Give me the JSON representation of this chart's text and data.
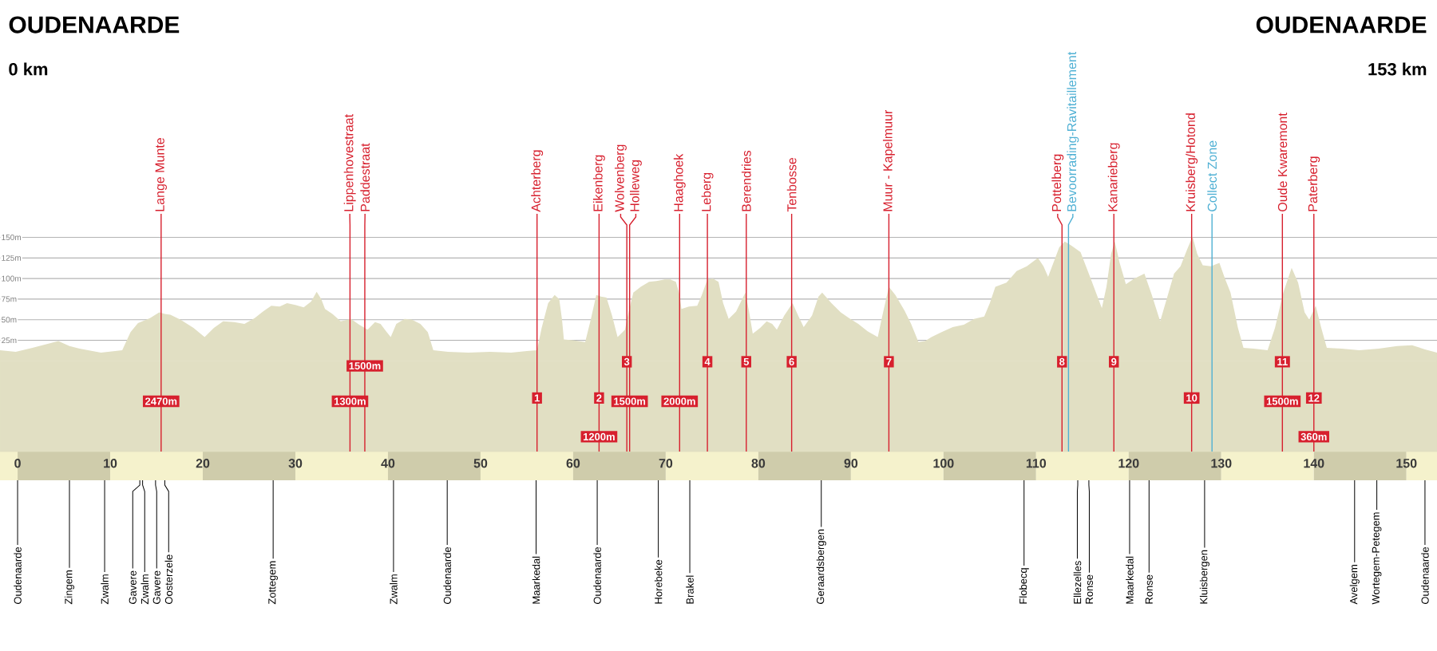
{
  "chart_data": {
    "type": "area",
    "color": "#e1dfc3",
    "x": [
      -1.9,
      -0.2,
      1.6,
      4.4,
      5.6,
      6.7,
      9.0,
      11.3,
      12.2,
      13.0,
      14.3,
      15.3,
      15.9,
      16.5,
      17.6,
      19.0,
      20.2,
      21.2,
      22.2,
      23.4,
      24.5,
      25.6,
      26.5,
      27.4,
      28.3,
      29.1,
      30.0,
      30.9,
      31.7,
      32.3,
      32.8,
      33.2,
      34.0,
      34.9,
      36.0,
      36.9,
      37.8,
      38.6,
      39.2,
      39.8,
      40.3,
      40.9,
      41.8,
      42.6,
      43.5,
      44.3,
      44.9,
      46.5,
      48.7,
      51.0,
      53.3,
      55.0,
      56.1,
      56.6,
      57.3,
      58.0,
      58.5,
      58.8,
      59.0,
      60.0,
      61.3,
      61.9,
      62.5,
      63.0,
      63.6,
      64.2,
      64.8,
      65.6,
      66.0,
      66.5,
      67.3,
      68.2,
      69.0,
      69.9,
      70.5,
      71.1,
      71.5,
      71.7,
      72.5,
      73.4,
      73.9,
      74.5,
      75.1,
      75.7,
      76.2,
      76.8,
      77.6,
      78.6,
      79.0,
      79.4,
      80.2,
      80.9,
      81.5,
      82.0,
      82.8,
      83.7,
      84.3,
      84.9,
      85.8,
      86.5,
      86.9,
      87.9,
      88.9,
      89.8,
      90.8,
      91.8,
      92.9,
      93.4,
      94.1,
      94.8,
      95.8,
      96.5,
      97.3,
      98.0,
      98.7,
      99.8,
      101.0,
      102.2,
      103.3,
      104.4,
      105.0,
      105.6,
      106.8,
      107.9,
      109.0,
      110.2,
      110.8,
      111.3,
      111.9,
      112.5,
      113.1,
      113.8,
      114.8,
      115.9,
      117.1,
      117.6,
      118.1,
      118.5,
      119.0,
      119.7,
      120.6,
      121.7,
      122.5,
      123.4,
      124.1,
      124.9,
      125.6,
      126.3,
      126.9,
      127.4,
      128.0,
      128.9,
      129.8,
      130.4,
      131.0,
      131.8,
      132.4,
      133.5,
      135.0,
      135.8,
      136.7,
      137.6,
      138.3,
      139.0,
      139.5,
      140.2,
      140.8,
      141.4,
      143.0,
      144.9,
      147.0,
      149.0,
      150.6,
      152.0,
      153.3
    ],
    "values": [
      13,
      11,
      16,
      24,
      18,
      15,
      10,
      13,
      35,
      46,
      52,
      59,
      57,
      56,
      50,
      40,
      29,
      40,
      48,
      47,
      45,
      52,
      60,
      67,
      66,
      70,
      68,
      65,
      72,
      84,
      75,
      63,
      57,
      48,
      51,
      44,
      38,
      47,
      45,
      36,
      29,
      45,
      51,
      50,
      45,
      35,
      13,
      11,
      10,
      11,
      10,
      12,
      13,
      40,
      70,
      80,
      75,
      50,
      26,
      25,
      23,
      50,
      80,
      78,
      77,
      55,
      29,
      38,
      60,
      83,
      90,
      96,
      97,
      99,
      99,
      96,
      80,
      63,
      66,
      67,
      80,
      99,
      100,
      96,
      70,
      51,
      60,
      83,
      60,
      33,
      40,
      48,
      45,
      38,
      55,
      70,
      55,
      41,
      55,
      78,
      83,
      70,
      59,
      52,
      45,
      36,
      29,
      55,
      90,
      80,
      61,
      45,
      23,
      24,
      29,
      35,
      41,
      44,
      51,
      54,
      70,
      90,
      95,
      109,
      115,
      125,
      115,
      102,
      120,
      138,
      145,
      140,
      132,
      100,
      64,
      90,
      130,
      145,
      120,
      93,
      100,
      106,
      80,
      48,
      75,
      106,
      115,
      135,
      151,
      130,
      116,
      115,
      119,
      100,
      83,
      40,
      16,
      15,
      13,
      40,
      83,
      113,
      95,
      59,
      50,
      67,
      40,
      16,
      15,
      13,
      15,
      18,
      19,
      14,
      10
    ],
    "xlim": [
      -1.9,
      153.3
    ],
    "xticks": [
      0,
      10,
      20,
      30,
      40,
      50,
      60,
      70,
      80,
      90,
      100,
      110,
      120,
      130,
      140,
      150
    ],
    "ylim": [
      -110,
      165
    ],
    "yticks": [
      {
        "value": 25,
        "label": "25m"
      },
      {
        "value": 50,
        "label": "50m"
      },
      {
        "value": 75,
        "label": "75m"
      },
      {
        "value": 100,
        "label": "100m"
      },
      {
        "value": 125,
        "label": "125m"
      },
      {
        "value": 150,
        "label": "150m"
      }
    ],
    "grid": "y",
    "bands": [
      {
        "axis": "y",
        "from": -110,
        "to": 0,
        "color": "#e1dfc3"
      }
    ],
    "ref_lines": [
      {
        "axis": "x",
        "value": 15.5,
        "label": "Lange Munte",
        "color": "#d7202e"
      },
      {
        "axis": "x",
        "value": 35.9,
        "label": "Lippenhovestraat",
        "color": "#d7202e"
      },
      {
        "axis": "x",
        "value": 37.5,
        "label": "Paddestraat",
        "color": "#d7202e"
      },
      {
        "axis": "x",
        "value": 56.1,
        "label": "Achterberg",
        "color": "#d7202e"
      },
      {
        "axis": "x",
        "value": 62.8,
        "label": "Eikenberg",
        "color": "#d7202e"
      },
      {
        "axis": "x",
        "value": 65.8,
        "label": "Wolvenberg",
        "color": "#d7202e"
      },
      {
        "axis": "x",
        "value": 66.1,
        "label": "Holleweg",
        "color": "#d7202e"
      },
      {
        "axis": "x",
        "value": 71.5,
        "label": "Haaghoek",
        "color": "#d7202e"
      },
      {
        "axis": "x",
        "value": 74.5,
        "label": "Leberg",
        "color": "#d7202e"
      },
      {
        "axis": "x",
        "value": 78.7,
        "label": "Berendries",
        "color": "#d7202e"
      },
      {
        "axis": "x",
        "value": 83.6,
        "label": "Tenbosse",
        "color": "#d7202e"
      },
      {
        "axis": "x",
        "value": 94.1,
        "label": "Muur - Kapelmuur",
        "color": "#d7202e"
      },
      {
        "axis": "x",
        "value": 112.8,
        "label": "Pottelberg",
        "color": "#d7202e"
      },
      {
        "axis": "x",
        "value": 113.5,
        "label": "Bevoorrading-Ravitaillement",
        "color": "#4fb0d4"
      },
      {
        "axis": "x",
        "value": 118.4,
        "label": "Kanarieberg",
        "color": "#d7202e"
      },
      {
        "axis": "x",
        "value": 126.8,
        "label": "Kruisberg/Hotond",
        "color": "#d7202e"
      },
      {
        "axis": "x",
        "value": 129.0,
        "label": "Collect Zone",
        "color": "#4fb0d4"
      },
      {
        "axis": "x",
        "value": 136.6,
        "label": "Oude Kwaremont",
        "color": "#d7202e"
      },
      {
        "axis": "x",
        "value": 140.0,
        "label": "Paterberg",
        "color": "#d7202e"
      }
    ],
    "annotations": [
      "OUDENAARDE",
      "0 km",
      "OUDENAARDE",
      "153 km",
      {
        "text": "1",
        "x": 56.1,
        "y": -45
      },
      {
        "text": "2",
        "x": 62.8,
        "y": -45
      },
      {
        "text": "3",
        "x": 65.8,
        "y": -1
      },
      {
        "text": "4",
        "x": 74.5,
        "y": -1
      },
      {
        "text": "5",
        "x": 78.7,
        "y": -1
      },
      {
        "text": "6",
        "x": 83.6,
        "y": -1
      },
      {
        "text": "7",
        "x": 94.1,
        "y": -1
      },
      {
        "text": "8",
        "x": 112.8,
        "y": -1
      },
      {
        "text": "9",
        "x": 118.4,
        "y": -1
      },
      {
        "text": "10",
        "x": 126.8,
        "y": -45
      },
      {
        "text": "11",
        "x": 136.6,
        "y": -1
      },
      {
        "text": "12",
        "x": 140.0,
        "y": -45
      },
      {
        "text": "2470m",
        "x": 15.5,
        "y": -49
      },
      {
        "text": "1300m",
        "x": 35.9,
        "y": -49
      },
      {
        "text": "1500m",
        "x": 37.5,
        "y": -6
      },
      {
        "text": "1200m",
        "x": 62.8,
        "y": -92
      },
      {
        "text": "1500m",
        "x": 66.1,
        "y": -49
      },
      {
        "text": "2000m",
        "x": 71.5,
        "y": -49
      },
      {
        "text": "1500m",
        "x": 136.6,
        "y": -49
      },
      {
        "text": "360m",
        "x": 140.0,
        "y": -92
      },
      {
        "text": "Oudenaarde",
        "x": 0
      },
      {
        "text": "Zingem",
        "x": 5.6
      },
      {
        "text": "Zwalm",
        "x": 9.4
      },
      {
        "text": "Gavere",
        "x": 13.2
      },
      {
        "text": "Zwalm",
        "x": 13.5
      },
      {
        "text": "Gavere",
        "x": 14.9
      },
      {
        "text": "Oosterzele",
        "x": 15.9
      },
      {
        "text": "Zottegem",
        "x": 27.6
      },
      {
        "text": "Zwalm",
        "x": 40.6
      },
      {
        "text": "Oudenaarde",
        "x": 46.4
      },
      {
        "text": "Maarkedal",
        "x": 56.0
      },
      {
        "text": "Oudenaarde",
        "x": 62.6
      },
      {
        "text": "Horebeke",
        "x": 69.2
      },
      {
        "text": "Brakel",
        "x": 72.6
      },
      {
        "text": "Geraardsbergen",
        "x": 86.8
      },
      {
        "text": "Flobecq",
        "x": 108.7
      },
      {
        "text": "Ellezelles",
        "x": 114.5
      },
      {
        "text": "Ronse",
        "x": 115.7
      },
      {
        "text": "Maarkedal",
        "x": 120.1
      },
      {
        "text": "Ronse",
        "x": 122.2
      },
      {
        "text": "Kluisbergen",
        "x": 128.2
      },
      {
        "text": "Avelgem",
        "x": 144.4
      },
      {
        "text": "Wortegem-Petegem",
        "x": 146.8
      },
      {
        "text": "Oudenaarde",
        "x": 152.0
      }
    ]
  }
}
